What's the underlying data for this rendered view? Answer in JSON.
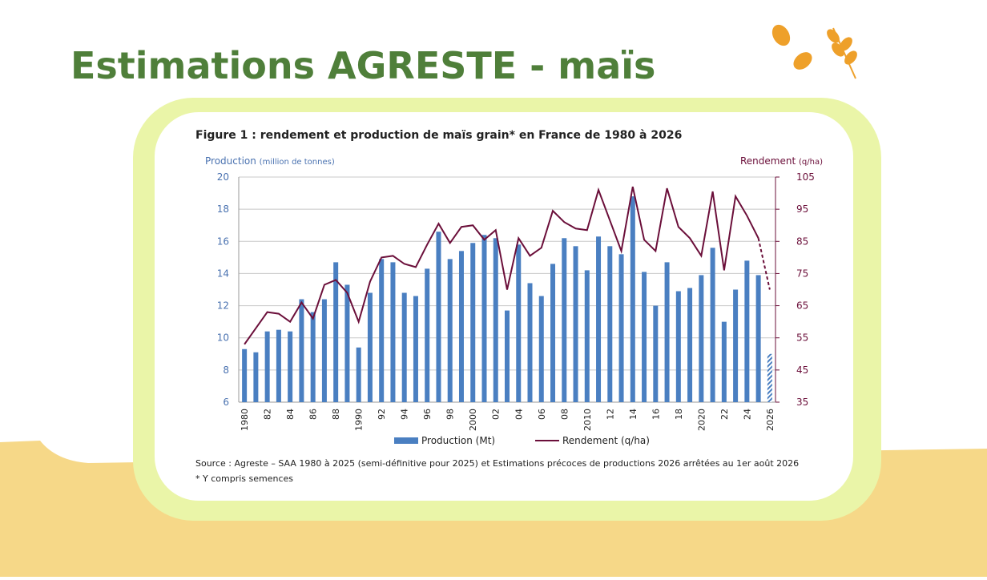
{
  "header": {
    "title": "Estimations AGRESTE - maïs"
  },
  "chart_data": {
    "type": "bar_line",
    "title": "Figure 1 : rendement et production de maïs grain* en France de 1980 à 2026",
    "y_label": "Production",
    "y_label_unit": "(million de tonnes)",
    "y2_label": "Rendement",
    "y2_label_unit": "(q/ha)",
    "categories": [
      "1980",
      null,
      "82",
      null,
      "84",
      null,
      "86",
      null,
      "88",
      null,
      "1990",
      null,
      "92",
      null,
      "94",
      null,
      "96",
      null,
      "98",
      null,
      "2000",
      null,
      "02",
      null,
      "04",
      null,
      "06",
      null,
      "08",
      null,
      "2010",
      null,
      "12",
      null,
      "14",
      null,
      "16",
      null,
      "18",
      null,
      "2020",
      null,
      "22",
      null,
      "24",
      null,
      "2026"
    ],
    "series": [
      {
        "name": "Production (Mt)",
        "type": "bar",
        "color": "#4a7fc1",
        "values": [
          9.3,
          9.1,
          10.4,
          10.5,
          10.4,
          12.4,
          11.6,
          12.4,
          14.7,
          13.3,
          9.4,
          12.8,
          14.9,
          14.7,
          12.8,
          12.6,
          14.3,
          16.6,
          14.9,
          15.4,
          15.9,
          16.4,
          16.2,
          11.7,
          15.8,
          13.4,
          12.6,
          14.6,
          16.2,
          15.7,
          14.2,
          16.3,
          15.7,
          15.2,
          18.8,
          14.1,
          12.0,
          14.7,
          12.9,
          13.1,
          13.9,
          15.6,
          11.0,
          13.0,
          14.8,
          13.9,
          9.0
        ]
      },
      {
        "name": "Rendement (q/ha)",
        "type": "line",
        "axis": "y2",
        "color": "#6b0f3a",
        "values": [
          53,
          58,
          63,
          62.5,
          60,
          66,
          61,
          71.5,
          73,
          69,
          60,
          72.5,
          80,
          80.5,
          78,
          77,
          84,
          90.5,
          84.5,
          89.5,
          90,
          85.5,
          88.5,
          70,
          86,
          80.5,
          83,
          94.5,
          91,
          89,
          88.5,
          101,
          91.5,
          82,
          102,
          85.5,
          82,
          101.5,
          89.5,
          86,
          80.5,
          100.5,
          76,
          99,
          93,
          86,
          70
        ]
      }
    ],
    "last_point_estimated": true,
    "ylim": [
      6,
      20
    ],
    "yticks": [
      6,
      8,
      10,
      12,
      14,
      16,
      18,
      20
    ],
    "y2lim": [
      35,
      105
    ],
    "y2ticks": [
      35,
      45,
      55,
      65,
      75,
      85,
      95,
      105
    ],
    "grid": true,
    "legend": "bottom",
    "source": "Source : Agreste – SAA 1980 à 2025 (semi-définitive pour 2025) et Estimations précoces de productions 2026 arrêtées au 1er août 2026",
    "footnote": "* Y compris semences"
  }
}
